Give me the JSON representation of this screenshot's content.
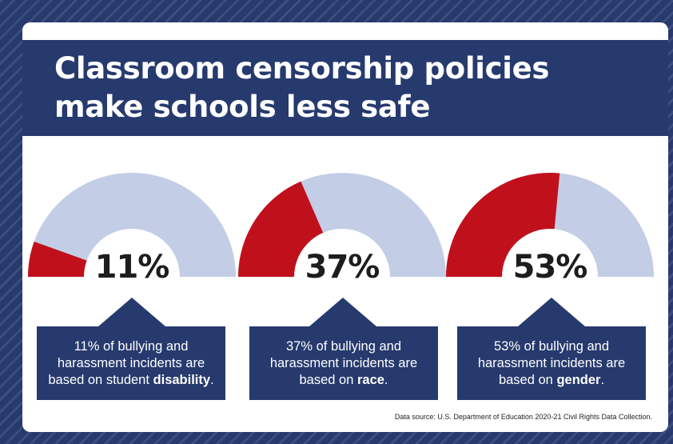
{
  "title": {
    "line1": "Classroom censorship policies",
    "line2": "make schools less safe"
  },
  "colors": {
    "navy": "#263a6e",
    "red": "#c0101c",
    "light_blue": "#c3cde6"
  },
  "chart_data": [
    {
      "type": "gauge",
      "value": 11,
      "unit": "%",
      "label": "11%",
      "caption": {
        "pre": "11% of bullying and harassment incidents are based on student ",
        "bold": "disability",
        "post": "."
      }
    },
    {
      "type": "gauge",
      "value": 37,
      "unit": "%",
      "label": "37%",
      "caption": {
        "pre": "37% of bullying and harassment incidents are based on ",
        "bold": "race",
        "post": "."
      }
    },
    {
      "type": "gauge",
      "value": 53,
      "unit": "%",
      "label": "53%",
      "caption": {
        "pre": "53% of bullying and harassment incidents are based on ",
        "bold": "gender",
        "post": "."
      }
    }
  ],
  "source": "Data source: U.S. Department of Education 2020-21 Civil Rights Data Collection."
}
